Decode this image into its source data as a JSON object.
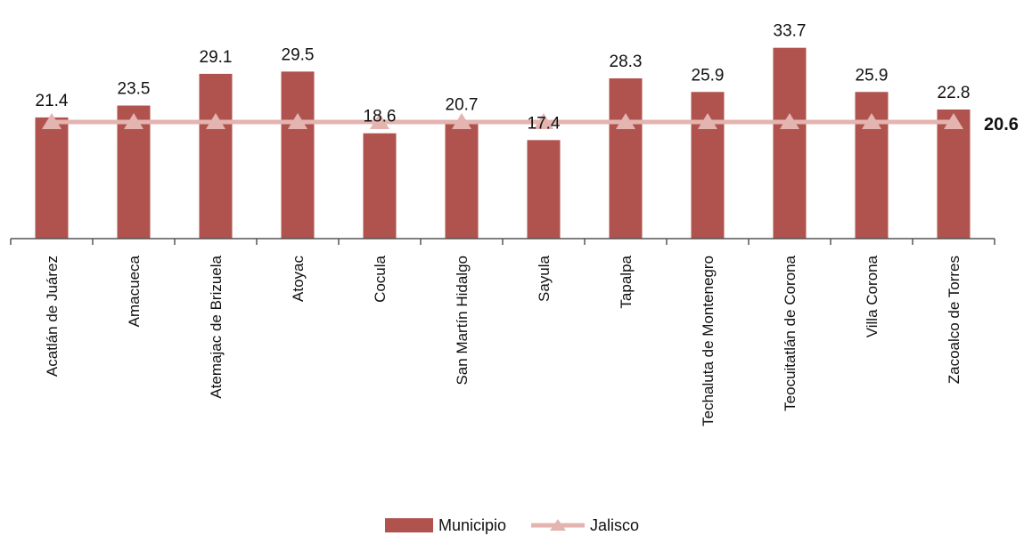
{
  "colors": {
    "bar": "#b0534e",
    "line": "#e3b4b0",
    "axis": "#555555"
  },
  "chart_data": {
    "type": "bar",
    "categories": [
      "Acatlán de Juárez",
      "Amacueca",
      "Atemajac de Brizuela",
      "Atoyac",
      "Cocula",
      "San Martín Hidalgo",
      "Sayula",
      "Tapalpa",
      "Techaluta de Montenegro",
      "Teocuitatlán de Corona",
      "Villa Corona",
      "Zacoalco de Torres"
    ],
    "series": [
      {
        "name": "Municipio",
        "type": "bar",
        "values": [
          21.4,
          23.5,
          29.1,
          29.5,
          18.6,
          20.7,
          17.4,
          28.3,
          25.9,
          33.7,
          25.9,
          22.8
        ],
        "value_labels": [
          "21.4",
          "23.5",
          "29.1",
          "29.5",
          "18.6",
          "20.7",
          "17.4",
          "28.3",
          "25.9",
          "33.7",
          "25.9",
          "22.8"
        ]
      },
      {
        "name": "Jalisco",
        "type": "line",
        "marker": "triangle",
        "values": [
          20.6,
          20.6,
          20.6,
          20.6,
          20.6,
          20.6,
          20.6,
          20.6,
          20.6,
          20.6,
          20.6,
          20.6
        ],
        "end_label": "20.6"
      }
    ],
    "ylim": [
      0,
      34.5
    ],
    "grid": false,
    "legend_position": "bottom"
  }
}
